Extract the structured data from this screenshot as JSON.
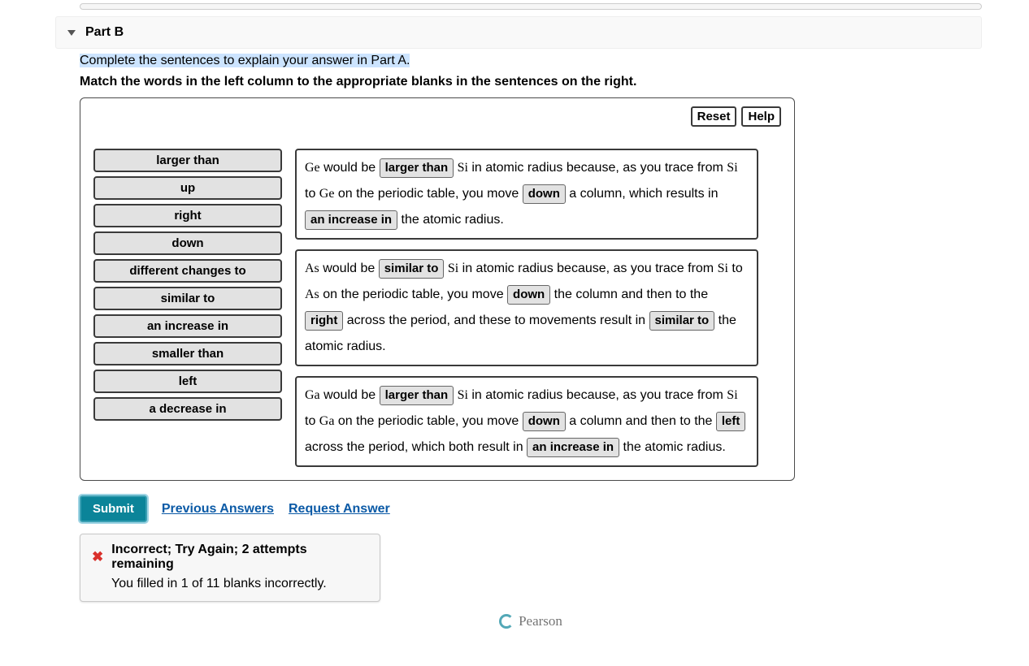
{
  "part": {
    "title": "Part B"
  },
  "instructions": {
    "highlighted": "Complete the sentences to explain your answer in Part A.",
    "bold": "Match the words in the left column to the appropriate blanks in the sentences on the right."
  },
  "toolbar": {
    "reset": "Reset",
    "help": "Help"
  },
  "wordbank": [
    "larger than",
    "up",
    "right",
    "down",
    "different changes to",
    "similar to",
    "an increase in",
    "smaller than",
    "left",
    "a decrease in"
  ],
  "sentences": {
    "s1": {
      "el1_pre": "Ge",
      "t1": " would be ",
      "chip1": "larger than",
      "el2_pre": " ",
      "el2": "Si",
      "t2": " in atomic radius because, as you trace from ",
      "el3": "Si",
      "t3": " to ",
      "el4": "Ge",
      "t4": " on the periodic table, you move ",
      "chip2": "down",
      "t5": " a column, which results in ",
      "chip3": "an increase in",
      "t6": " the atomic radius."
    },
    "s2": {
      "el1_pre": "As",
      "t1": " would be ",
      "chip1": "similar to",
      "el2_pre": " ",
      "el2": "Si",
      "t2": " in atomic radius because, as you trace from ",
      "el3": "Si",
      "t3": " to ",
      "el4": "As",
      "t4": " on the periodic table, you move ",
      "chip2": "down",
      "t5": " the column and then to the ",
      "chip3": "right",
      "t6": " across the period, and these to movements result in ",
      "chip4": "similar to",
      "t7": " the atomic radius."
    },
    "s3": {
      "el1_pre": "Ga",
      "t1": " would be ",
      "chip1": "larger than",
      "el2_pre": " ",
      "el2": "Si",
      "t2": " in atomic radius because, as you trace from ",
      "el3": "Si",
      "t3": " to ",
      "el4": "Ga",
      "t4": " on the periodic table, you move ",
      "chip2": "down",
      "t5": " a column and then to the ",
      "chip3": "left",
      "t6": " across the period, which both result in ",
      "chip4": "an increase in",
      "t7": " the atomic radius."
    }
  },
  "actions": {
    "submit": "Submit",
    "previous": "Previous Answers",
    "request": "Request Answer"
  },
  "feedback": {
    "line1": "Incorrect; Try Again; 2 attempts remaining",
    "line2": "You filled in 1 of 11 blanks incorrectly."
  },
  "footer": {
    "brand": "Pearson"
  },
  "colors": {
    "highlight": "#cce4ff",
    "chip_bg": "#e2e2e2",
    "submit_bg": "#0b8499",
    "link": "#0b5aa6",
    "error": "#d9302c"
  }
}
